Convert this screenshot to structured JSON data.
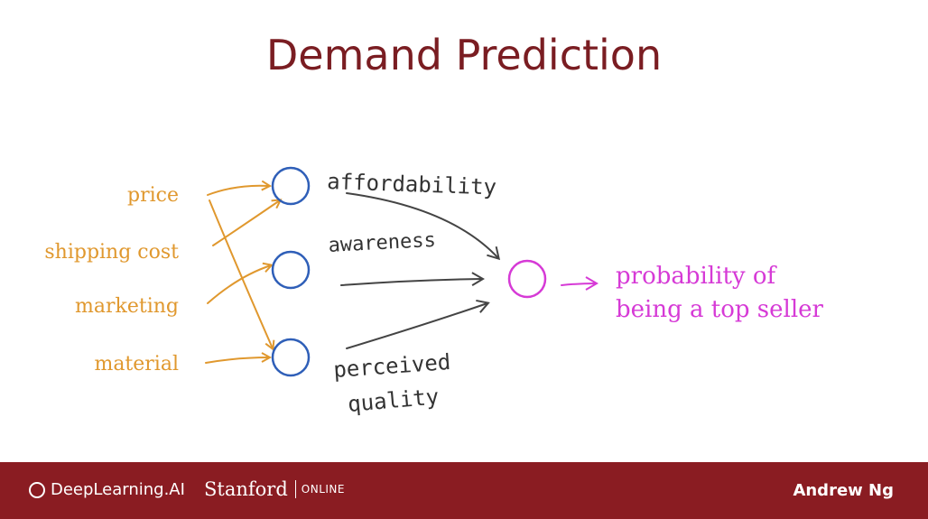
{
  "slide": {
    "title": "Demand Prediction"
  },
  "diagram": {
    "inputs": [
      "price",
      "shipping cost",
      "marketing",
      "material"
    ],
    "hidden": [
      "affordability",
      "awareness",
      "perceived",
      "quality"
    ],
    "output_line1": "probability of",
    "output_line2": "being a top seller",
    "colors": {
      "input": "#e0982e",
      "node": "#2f5fb8",
      "output": "#d63ad6",
      "arrow": "#444444"
    }
  },
  "footer": {
    "deeplearning_label": "DeepLearning.AI",
    "stanford_label": "Stanford",
    "online_label": "ONLINE",
    "author": "Andrew Ng"
  }
}
